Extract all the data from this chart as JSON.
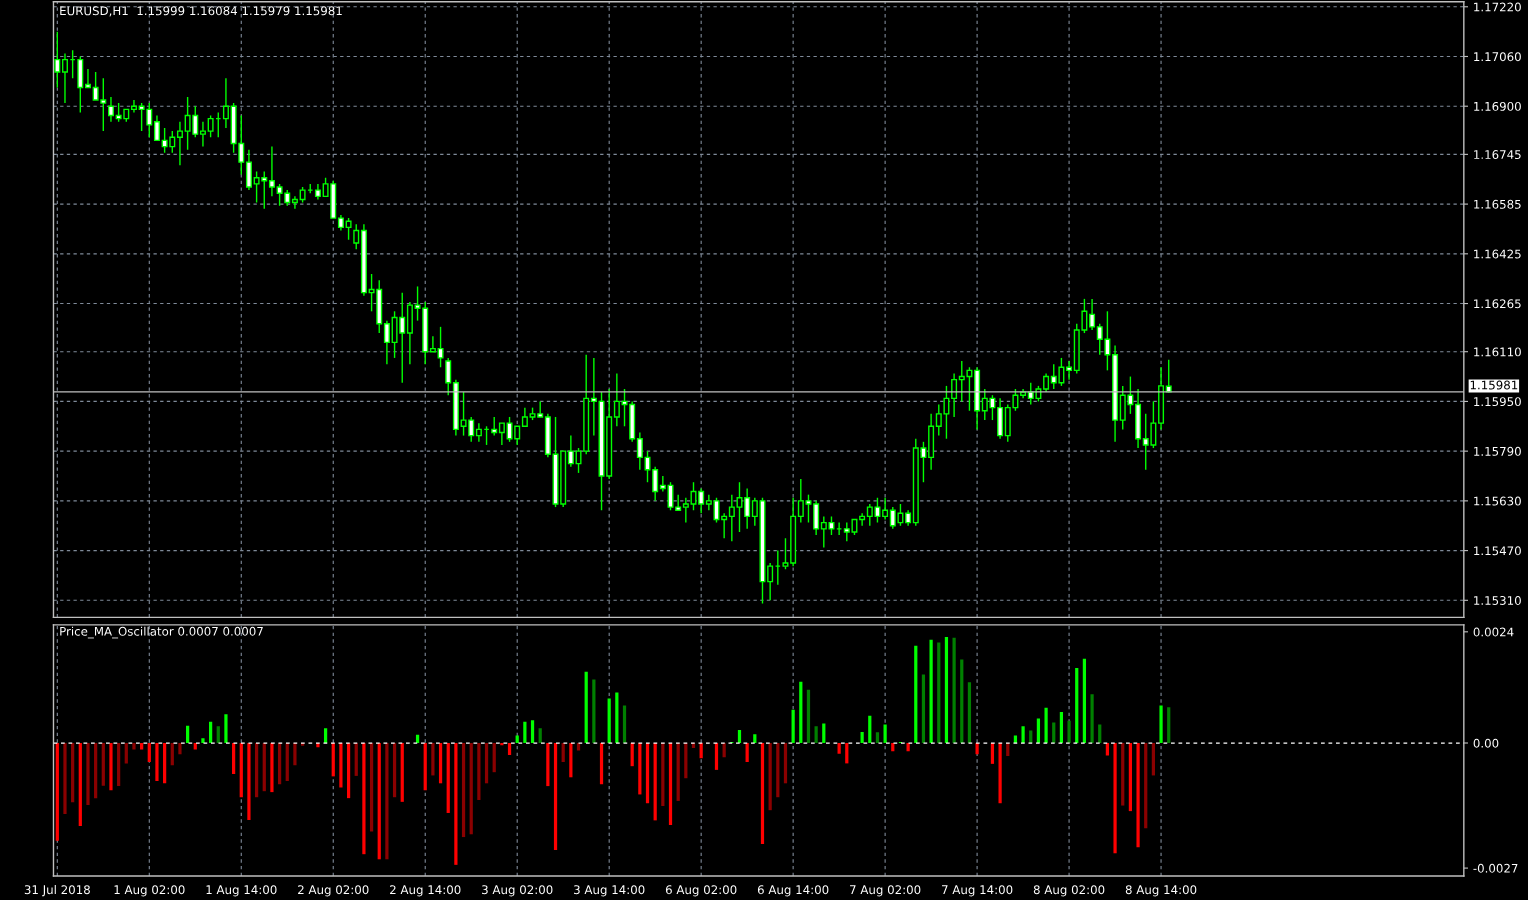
{
  "chart_data": [
    {
      "type": "candlestick",
      "title": "EURUSD,H1  1.15999 1.16084 1.15979 1.15981",
      "categories": [
        null,
        null,
        null,
        null,
        null,
        null,
        null,
        null,
        null,
        null,
        null,
        null,
        null,
        null,
        null,
        null,
        null,
        null,
        null,
        null,
        null,
        null,
        null,
        null,
        null,
        null,
        null,
        null,
        null,
        null,
        null,
        null,
        null,
        null,
        null,
        null,
        null,
        null,
        null,
        null,
        null,
        null,
        null,
        null,
        null,
        null,
        null,
        null,
        null,
        null,
        null,
        null,
        null,
        null,
        null,
        null,
        null,
        null,
        null,
        null,
        null,
        null,
        null,
        null,
        null,
        null,
        null,
        null,
        null,
        null,
        null,
        null,
        null,
        null,
        null,
        null,
        null,
        null,
        null,
        null,
        null,
        null,
        null,
        null,
        null,
        null,
        null,
        null,
        null,
        null,
        null,
        null,
        null,
        null,
        null,
        null,
        null,
        null,
        null,
        null,
        null,
        null,
        null,
        null,
        null,
        null,
        null,
        null,
        null,
        null,
        null,
        null,
        null,
        null,
        null,
        null,
        null,
        null,
        null,
        null,
        null,
        null,
        null,
        null,
        null,
        null,
        null,
        null,
        null,
        null,
        null,
        null,
        null,
        null,
        null,
        null,
        null,
        null,
        null,
        null,
        null,
        null,
        null,
        null,
        null,
        null,
        null,
        null,
        null,
        null,
        null,
        null,
        null,
        null,
        null,
        null,
        null,
        null,
        null,
        null,
        null,
        null,
        null,
        null,
        null,
        null,
        null,
        null,
        null,
        null,
        null,
        null,
        null,
        null,
        null,
        null,
        null,
        null,
        null,
        null,
        null,
        null,
        null,
        null
      ],
      "ohlc": [
        [
          1.1705,
          1.1714,
          1.1696,
          1.1701
        ],
        [
          1.1701,
          1.1707,
          1.1691,
          1.1705
        ],
        [
          1.1705,
          1.1708,
          1.1699,
          1.1705
        ],
        [
          1.1705,
          1.1706,
          1.1688,
          1.1696
        ],
        [
          1.1697,
          1.1702,
          1.1696,
          1.1696
        ],
        [
          1.1696,
          1.1701,
          1.1692,
          1.1692
        ],
        [
          1.1692,
          1.1699,
          1.1682,
          1.1691
        ],
        [
          1.169,
          1.1693,
          1.1685,
          1.1687
        ],
        [
          1.1687,
          1.1691,
          1.1685,
          1.1686
        ],
        [
          1.1686,
          1.1689,
          1.1685,
          1.1689
        ],
        [
          1.1689,
          1.1692,
          1.1688,
          1.169
        ],
        [
          1.169,
          1.1691,
          1.1682,
          1.1689
        ],
        [
          1.1689,
          1.1691,
          1.168,
          1.1684
        ],
        [
          1.1685,
          1.1687,
          1.1679,
          1.1679
        ],
        [
          1.1679,
          1.1683,
          1.1675,
          1.1677
        ],
        [
          1.1677,
          1.1682,
          1.1675,
          1.168
        ],
        [
          1.168,
          1.1685,
          1.1671,
          1.1682
        ],
        [
          1.1682,
          1.1693,
          1.1676,
          1.1687
        ],
        [
          1.1687,
          1.169,
          1.168,
          1.1681
        ],
        [
          1.1681,
          1.1685,
          1.1677,
          1.1682
        ],
        [
          1.1682,
          1.1687,
          1.168,
          1.1686
        ],
        [
          1.1686,
          1.1688,
          1.168,
          1.1686
        ],
        [
          1.1686,
          1.1699,
          1.1683,
          1.169
        ],
        [
          1.169,
          1.1691,
          1.1675,
          1.1678
        ],
        [
          1.1678,
          1.1687,
          1.1668,
          1.1672
        ],
        [
          1.1672,
          1.1676,
          1.1663,
          1.1664
        ],
        [
          1.1665,
          1.1669,
          1.1659,
          1.1667
        ],
        [
          1.1667,
          1.1669,
          1.1657,
          1.1666
        ],
        [
          1.1666,
          1.1677,
          1.1661,
          1.1664
        ],
        [
          1.1664,
          1.1665,
          1.1658,
          1.1662
        ],
        [
          1.1662,
          1.1663,
          1.1658,
          1.1659
        ],
        [
          1.1659,
          1.1661,
          1.1657,
          1.166
        ],
        [
          1.166,
          1.1664,
          1.1659,
          1.1663
        ],
        [
          1.1663,
          1.1665,
          1.1662,
          1.1663
        ],
        [
          1.1663,
          1.1665,
          1.166,
          1.1661
        ],
        [
          1.1661,
          1.1667,
          1.1661,
          1.1665
        ],
        [
          1.1665,
          1.1666,
          1.1654,
          1.1654
        ],
        [
          1.1654,
          1.1655,
          1.165,
          1.1651
        ],
        [
          1.1651,
          1.1654,
          1.1647,
          1.1653
        ],
        [
          1.1646,
          1.1652,
          1.1644,
          1.165
        ],
        [
          1.165,
          1.1652,
          1.1629,
          1.163
        ],
        [
          1.163,
          1.1636,
          1.1624,
          1.1631
        ],
        [
          1.1631,
          1.1634,
          1.1617,
          1.162
        ],
        [
          1.162,
          1.1621,
          1.1607,
          1.1614
        ],
        [
          1.1614,
          1.1624,
          1.1609,
          1.1622
        ],
        [
          1.1622,
          1.163,
          1.1601,
          1.1617
        ],
        [
          1.1617,
          1.1627,
          1.1607,
          1.1626
        ],
        [
          1.1626,
          1.1632,
          1.1621,
          1.1625
        ],
        [
          1.1625,
          1.1627,
          1.1607,
          1.1611
        ],
        [
          1.1611,
          1.1616,
          1.1611,
          1.1612
        ],
        [
          1.1612,
          1.1619,
          1.1606,
          1.1609
        ],
        [
          1.1608,
          1.1609,
          1.1597,
          1.1601
        ],
        [
          1.1601,
          1.1602,
          1.1584,
          1.1586
        ],
        [
          1.1587,
          1.1598,
          1.1584,
          1.1589
        ],
        [
          1.1589,
          1.159,
          1.1582,
          1.1584
        ],
        [
          1.1584,
          1.1588,
          1.1582,
          1.1586
        ],
        [
          1.1586,
          1.1587,
          1.1581,
          1.1586
        ],
        [
          1.1586,
          1.159,
          1.1584,
          1.1585
        ],
        [
          1.1585,
          1.1588,
          1.1581,
          1.1588
        ],
        [
          1.1588,
          1.159,
          1.1582,
          1.1583
        ],
        [
          1.1583,
          1.1587,
          1.1581,
          1.1587
        ],
        [
          1.1587,
          1.1593,
          1.1587,
          1.159
        ],
        [
          1.159,
          1.1593,
          1.1589,
          1.1591
        ],
        [
          1.1591,
          1.1595,
          1.159,
          1.159
        ],
        [
          1.159,
          1.1591,
          1.1577,
          1.1578
        ],
        [
          1.1578,
          1.159,
          1.1561,
          1.1562
        ],
        [
          1.1562,
          1.1579,
          1.1561,
          1.1579
        ],
        [
          1.1579,
          1.1584,
          1.1574,
          1.1575
        ],
        [
          1.1575,
          1.158,
          1.1572,
          1.1579
        ],
        [
          1.1579,
          1.161,
          1.1578,
          1.1596
        ],
        [
          1.1596,
          1.1609,
          1.1584,
          1.1595
        ],
        [
          1.1595,
          1.1598,
          1.156,
          1.1571
        ],
        [
          1.1571,
          1.1599,
          1.157,
          1.159
        ],
        [
          1.159,
          1.1604,
          1.1587,
          1.1595
        ],
        [
          1.1595,
          1.1599,
          1.1587,
          1.1594
        ],
        [
          1.1594,
          1.1595,
          1.1582,
          1.1583
        ],
        [
          1.1583,
          1.1585,
          1.1573,
          1.1577
        ],
        [
          1.1577,
          1.1579,
          1.1569,
          1.1573
        ],
        [
          1.1573,
          1.1574,
          1.1563,
          1.1566
        ],
        [
          1.1568,
          1.1571,
          1.1566,
          1.1567
        ],
        [
          1.1568,
          1.1569,
          1.156,
          1.1561
        ],
        [
          1.1561,
          1.1565,
          1.156,
          1.156
        ],
        [
          1.1561,
          1.1564,
          1.1556,
          1.1562
        ],
        [
          1.1562,
          1.1569,
          1.156,
          1.1566
        ],
        [
          1.1566,
          1.1567,
          1.1559,
          1.1562
        ],
        [
          1.1562,
          1.1565,
          1.156,
          1.1563
        ],
        [
          1.1563,
          1.1564,
          1.1556,
          1.1557
        ],
        [
          1.1557,
          1.1559,
          1.1551,
          1.1558
        ],
        [
          1.1558,
          1.1565,
          1.155,
          1.1561
        ],
        [
          1.1561,
          1.1569,
          1.1553,
          1.1564
        ],
        [
          1.1564,
          1.1567,
          1.1554,
          1.1558
        ],
        [
          1.1558,
          1.1564,
          1.1555,
          1.1563
        ],
        [
          1.1563,
          1.1564,
          1.153,
          1.1537
        ],
        [
          1.1537,
          1.1543,
          1.1531,
          1.1542
        ],
        [
          1.1542,
          1.1547,
          1.1536,
          1.1542
        ],
        [
          1.1542,
          1.1551,
          1.1541,
          1.1543
        ],
        [
          1.1543,
          1.1564,
          1.1542,
          1.1558
        ],
        [
          1.1558,
          1.157,
          1.1556,
          1.1563
        ],
        [
          1.1563,
          1.1565,
          1.1556,
          1.1562
        ],
        [
          1.1562,
          1.1563,
          1.1552,
          1.1554
        ],
        [
          1.1554,
          1.1558,
          1.1548,
          1.1556
        ],
        [
          1.1556,
          1.1558,
          1.1552,
          1.1554
        ],
        [
          1.1554,
          1.1556,
          1.1552,
          1.1554
        ],
        [
          1.1554,
          1.1556,
          1.155,
          1.1553
        ],
        [
          1.1553,
          1.1557,
          1.1552,
          1.1557
        ],
        [
          1.1557,
          1.1559,
          1.1555,
          1.1558
        ],
        [
          1.1558,
          1.1562,
          1.1555,
          1.1561
        ],
        [
          1.1561,
          1.1564,
          1.1556,
          1.1558
        ],
        [
          1.1558,
          1.1564,
          1.1557,
          1.156
        ],
        [
          1.156,
          1.1561,
          1.1554,
          1.1555
        ],
        [
          1.1556,
          1.1562,
          1.1555,
          1.1559
        ],
        [
          1.1559,
          1.156,
          1.1555,
          1.1556
        ],
        [
          1.1556,
          1.1583,
          1.1555,
          1.158
        ],
        [
          1.158,
          1.1582,
          1.1569,
          1.1577
        ],
        [
          1.1577,
          1.1591,
          1.1573,
          1.1587
        ],
        [
          1.1587,
          1.1594,
          1.1584,
          1.1591
        ],
        [
          1.1591,
          1.16,
          1.1583,
          1.1596
        ],
        [
          1.1596,
          1.1604,
          1.159,
          1.1602
        ],
        [
          1.1602,
          1.1608,
          1.1595,
          1.1603
        ],
        [
          1.1603,
          1.1606,
          1.1592,
          1.1605
        ],
        [
          1.1605,
          1.1606,
          1.1586,
          1.1592
        ],
        [
          1.1592,
          1.1599,
          1.1589,
          1.1596
        ],
        [
          1.1596,
          1.1597,
          1.1589,
          1.1593
        ],
        [
          1.1593,
          1.1596,
          1.1583,
          1.1584
        ],
        [
          1.1584,
          1.1594,
          1.1582,
          1.1593
        ],
        [
          1.1593,
          1.1599,
          1.1592,
          1.1597
        ],
        [
          1.1597,
          1.1599,
          1.1596,
          1.1598
        ],
        [
          1.1598,
          1.1601,
          1.1594,
          1.1596
        ],
        [
          1.1596,
          1.16,
          1.1595,
          1.1599
        ],
        [
          1.1599,
          1.1604,
          1.1598,
          1.1603
        ],
        [
          1.1603,
          1.1607,
          1.1599,
          1.1601
        ],
        [
          1.1601,
          1.1609,
          1.16,
          1.1606
        ],
        [
          1.1606,
          1.1608,
          1.1602,
          1.1605
        ],
        [
          1.1605,
          1.162,
          1.1604,
          1.1618
        ],
        [
          1.1618,
          1.1628,
          1.1617,
          1.1624
        ],
        [
          1.1623,
          1.1628,
          1.1618,
          1.1619
        ],
        [
          1.1619,
          1.162,
          1.161,
          1.1615
        ],
        [
          1.1615,
          1.1624,
          1.1605,
          1.161
        ],
        [
          1.161,
          1.1613,
          1.1582,
          1.1589
        ],
        [
          1.1589,
          1.16,
          1.1586,
          1.1597
        ],
        [
          1.1597,
          1.1603,
          1.1591,
          1.1594
        ],
        [
          1.1594,
          1.1599,
          1.158,
          1.1583
        ],
        [
          1.1583,
          1.1591,
          1.1573,
          1.1581
        ],
        [
          1.1581,
          1.1595,
          1.158,
          1.1588
        ],
        [
          1.1588,
          1.1606,
          1.1586,
          1.16
        ],
        [
          1.15999,
          1.16084,
          1.15979,
          1.15981
        ],
        null,
        null,
        null,
        null,
        null,
        null,
        null,
        null,
        null,
        null,
        null,
        null,
        null,
        null,
        null,
        null,
        null,
        null,
        null,
        null,
        null,
        null,
        null,
        null,
        null,
        null,
        null,
        null,
        null,
        null,
        null,
        null,
        null,
        null,
        null,
        null,
        null,
        null
      ],
      "color": "#00ff00",
      "ylim": [
        1.15255,
        1.17236
      ],
      "yticks": [
        {
          "value": 1.1722,
          "label": "1.17220"
        },
        {
          "value": 1.1706,
          "label": "1.17060"
        },
        {
          "value": 1.169,
          "label": "1.16900"
        },
        {
          "value": 1.16745,
          "label": "1.16745"
        },
        {
          "value": 1.16585,
          "label": "1.16585"
        },
        {
          "value": 1.16425,
          "label": "1.16425"
        },
        {
          "value": 1.16265,
          "label": "1.16265"
        },
        {
          "value": 1.1611,
          "label": "1.16110"
        },
        {
          "value": 1.1595,
          "label": "1.15950"
        },
        {
          "value": 1.1579,
          "label": "1.15790"
        },
        {
          "value": 1.1563,
          "label": "1.15630"
        },
        {
          "value": 1.1547,
          "label": "1.15470"
        },
        {
          "value": 1.1531,
          "label": "1.15310"
        }
      ],
      "grid": true,
      "tick_labels": "y",
      "ref_lines": [
        {
          "axis": "y",
          "value": 1.15981,
          "label": "1.15981",
          "color": "#c0c0c0",
          "line_style": "solid"
        }
      ]
    },
    {
      "type": "bar",
      "title": "Price_MA_Oscillator 0.0007 0.0007",
      "categories": [
        "31 Jul 2018",
        null,
        null,
        null,
        null,
        null,
        null,
        null,
        null,
        null,
        null,
        null,
        "1 Aug 02:00",
        null,
        null,
        null,
        null,
        null,
        null,
        null,
        null,
        null,
        null,
        null,
        "1 Aug 14:00",
        null,
        null,
        null,
        null,
        null,
        null,
        null,
        null,
        null,
        null,
        null,
        "2 Aug 02:00",
        null,
        null,
        null,
        null,
        null,
        null,
        null,
        null,
        null,
        null,
        null,
        "2 Aug 14:00",
        null,
        null,
        null,
        null,
        null,
        null,
        null,
        null,
        null,
        null,
        null,
        "3 Aug 02:00",
        null,
        null,
        null,
        null,
        null,
        null,
        null,
        null,
        null,
        null,
        null,
        "3 Aug 14:00",
        null,
        null,
        null,
        null,
        null,
        null,
        null,
        null,
        null,
        null,
        null,
        "6 Aug 02:00",
        null,
        null,
        null,
        null,
        null,
        null,
        null,
        null,
        null,
        null,
        null,
        "6 Aug 14:00",
        null,
        null,
        null,
        null,
        null,
        null,
        null,
        null,
        null,
        null,
        null,
        "7 Aug 02:00",
        null,
        null,
        null,
        null,
        null,
        null,
        null,
        null,
        null,
        null,
        null,
        "7 Aug 14:00",
        null,
        null,
        null,
        null,
        null,
        null,
        null,
        null,
        null,
        null,
        null,
        "8 Aug 02:00",
        null,
        null,
        null,
        null,
        null,
        null,
        null,
        null,
        null,
        null,
        null,
        "8 Aug 14:00",
        null,
        null,
        null,
        null,
        null,
        null,
        null,
        null,
        null,
        null,
        null,
        null,
        null,
        null,
        null,
        null,
        null,
        null,
        null,
        null,
        null,
        null,
        null,
        null,
        null,
        null,
        null,
        null,
        null,
        null,
        null,
        null,
        null,
        null,
        null,
        null,
        null,
        null,
        null
      ],
      "values": [
        -0.00211,
        -0.00153,
        -0.00128,
        -0.00179,
        -0.00134,
        -0.00119,
        -0.00092,
        -0.00102,
        -0.00093,
        -0.00044,
        -0.00014,
        -0.00014,
        -0.00041,
        -0.00082,
        -0.00087,
        -0.00048,
        -0.00024,
        0.00037,
        -0.00014,
        0.0001,
        0.00046,
        0.00036,
        0.00062,
        -0.00067,
        -0.00117,
        -0.00166,
        -0.00117,
        -0.00104,
        -0.00106,
        -0.00089,
        -0.00082,
        -0.00048,
        -6e-05,
        0,
        -9e-05,
        0.00032,
        -0.00072,
        -0.00096,
        -0.00119,
        -0.00071,
        -0.0024,
        -0.00191,
        -0.00251,
        -0.00251,
        -0.00117,
        -0.00127,
        0,
        0.00018,
        -0.00102,
        -0.0007,
        -0.00087,
        -0.00151,
        -0.00263,
        -0.00203,
        -0.00197,
        -0.00123,
        -0.00087,
        -0.00063,
        -5e-05,
        -0.00026,
        0.00016,
        0.00046,
        0.00049,
        0.00032,
        -0.00093,
        -0.00231,
        -0.00041,
        -0.00074,
        -0.00016,
        0.00154,
        0.00137,
        -0.00089,
        0.00096,
        0.00109,
        0.00081,
        -0.0005,
        -0.00111,
        -0.0013,
        -0.00167,
        -0.00136,
        -0.00177,
        -0.00125,
        -0.00076,
        -0.00011,
        -0.00033,
        null,
        -0.00058,
        -0.00031,
        2e-05,
        0.00028,
        -0.00041,
        0.00019,
        -0.00218,
        -0.00145,
        -0.00117,
        -0.00087,
        0.00072,
        0.00132,
        0.00115,
        0.00036,
        0.00042,
        null,
        -0.00023,
        -0.00044,
        null,
        0.00024,
        0.00059,
        0.00023,
        0.0004,
        -0.00018,
        2e-05,
        -0.00018,
        0.0021,
        0.00148,
        0.00223,
        0.00217,
        0.00229,
        0.00227,
        0.0018,
        0.00131,
        -0.00024,
        null,
        -0.00045,
        -0.0013,
        -0.00028,
        0.00016,
        0.00036,
        0.00027,
        0.00053,
        0.00076,
        0.00044,
        0.00067,
        0.00048,
        0.00162,
        0.00182,
        0.00105,
        0.0004,
        -0.00027,
        -0.00238,
        -0.00135,
        -0.00147,
        -0.00225,
        -0.00184,
        -0.0007,
        0.00081,
        0.00077,
        null,
        null,
        null,
        null,
        null,
        null,
        null,
        null,
        null,
        null,
        null,
        null,
        null,
        null,
        null,
        null,
        null,
        null,
        null,
        null,
        null,
        null,
        null,
        null,
        null,
        null,
        null,
        null,
        null,
        null,
        null,
        null,
        null,
        null,
        null,
        null,
        null,
        null
      ],
      "colors": [
        "#ff0000",
        "#8b0000",
        "#8b0000",
        "#ff0000",
        "#8b0000",
        "#8b0000",
        "#8b0000",
        "#ff0000",
        "#8b0000",
        "#8b0000",
        "#8b0000",
        "#ff0000",
        "#ff0000",
        "#ff0000",
        "#ff0000",
        "#8b0000",
        "#8b0000",
        "#00ff00",
        "#ff0000",
        "#00ff00",
        "#00ff00",
        "#008000",
        "#00ff00",
        "#ff0000",
        "#ff0000",
        "#ff0000",
        "#8b0000",
        "#8b0000",
        "#ff0000",
        "#8b0000",
        "#8b0000",
        "#8b0000",
        "#8b0000",
        "#8b0000",
        "#ff0000",
        "#00ff00",
        "#ff0000",
        "#ff0000",
        "#ff0000",
        "#8b0000",
        "#ff0000",
        "#8b0000",
        "#ff0000",
        "#8b0000",
        "#8b0000",
        "#ff0000",
        "#8b0000",
        "#00ff00",
        "#ff0000",
        "#8b0000",
        "#ff0000",
        "#ff0000",
        "#ff0000",
        "#8b0000",
        "#8b0000",
        "#8b0000",
        "#8b0000",
        "#8b0000",
        "#ff0000",
        "#ff0000",
        "#00ff00",
        "#00ff00",
        "#00ff00",
        "#008000",
        "#ff0000",
        "#ff0000",
        "#8b0000",
        "#ff0000",
        "#8b0000",
        "#00ff00",
        "#008000",
        "#ff0000",
        "#00ff00",
        "#00ff00",
        "#008000",
        "#ff0000",
        "#ff0000",
        "#ff0000",
        "#ff0000",
        "#8b0000",
        "#ff0000",
        "#8b0000",
        "#8b0000",
        "#8b0000",
        "#ff0000",
        "#ff0000",
        "#ff0000",
        "#8b0000",
        "#00ff00",
        "#00ff00",
        "#ff0000",
        "#00ff00",
        "#ff0000",
        "#8b0000",
        "#8b0000",
        "#8b0000",
        "#00ff00",
        "#00ff00",
        "#008000",
        "#008000",
        "#00ff00",
        "#ff0000",
        "#ff0000",
        "#ff0000",
        "#00ff00",
        "#00ff00",
        "#00ff00",
        "#008000",
        "#00ff00",
        "#ff0000",
        "#00ff00",
        "#ff0000",
        "#00ff00",
        "#008000",
        "#00ff00",
        "#008000",
        "#00ff00",
        "#008000",
        "#008000",
        "#008000",
        "#ff0000",
        "#ff0000",
        "#ff0000",
        "#ff0000",
        "#8b0000",
        "#00ff00",
        "#00ff00",
        "#008000",
        "#00ff00",
        "#00ff00",
        "#008000",
        "#00ff00",
        "#008000",
        "#00ff00",
        "#00ff00",
        "#008000",
        "#008000",
        "#ff0000",
        "#ff0000",
        "#8b0000",
        "#ff0000",
        "#ff0000",
        "#8b0000",
        "#8b0000",
        "#00ff00",
        "#008000",
        null,
        null,
        null,
        null,
        null,
        null,
        null,
        null,
        null,
        null,
        null,
        null,
        null,
        null,
        null,
        null,
        null,
        null,
        null,
        null,
        null,
        null,
        null,
        null,
        null,
        null,
        null,
        null,
        null,
        null,
        null,
        null,
        null,
        null,
        null,
        null,
        null,
        null
      ],
      "ylim": [
        -0.00287,
        0.00255
      ],
      "yticks": [
        {
          "value": -0.0027,
          "label": "-0.0027"
        },
        {
          "value": 0,
          "label": "0.00"
        },
        {
          "value": 0.0024,
          "label": "0.0024"
        }
      ],
      "grid": "x",
      "ref_lines": [
        {
          "axis": "y",
          "value": 0,
          "color": "#ffffff",
          "line_style": "dashed"
        }
      ]
    }
  ]
}
